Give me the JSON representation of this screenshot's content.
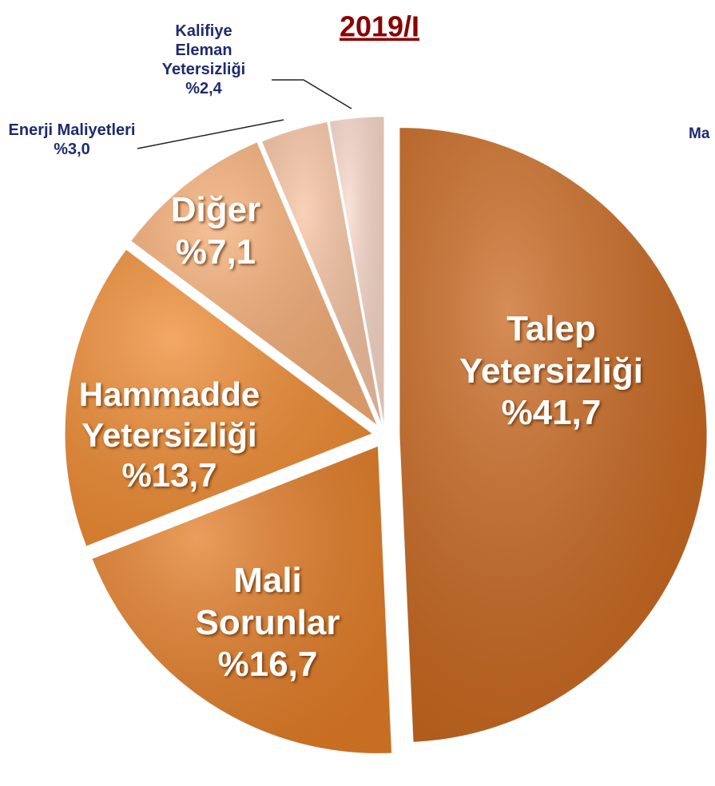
{
  "chart_data": {
    "type": "pie",
    "title": "2019/I",
    "categories": [
      "Talep Yetersizliği",
      "Mali Sorunlar",
      "Hammadde Yetersizliği",
      "Diğer",
      "Enerji Maliyetleri",
      "Kalifiye Eleman Yetersizliği"
    ],
    "values": [
      41.7,
      16.7,
      13.7,
      7.1,
      3.0,
      2.4
    ],
    "value_labels": [
      "%41,7",
      "%16,7",
      "%13,7",
      "%7,1",
      "%3,0",
      "%2,4"
    ],
    "colors": [
      "#c8671e",
      "#e37d27",
      "#ef8b32",
      "#f4ac74",
      "#f6c2a0",
      "#f9d8c8"
    ],
    "annotations": [
      "Ma"
    ]
  }
}
